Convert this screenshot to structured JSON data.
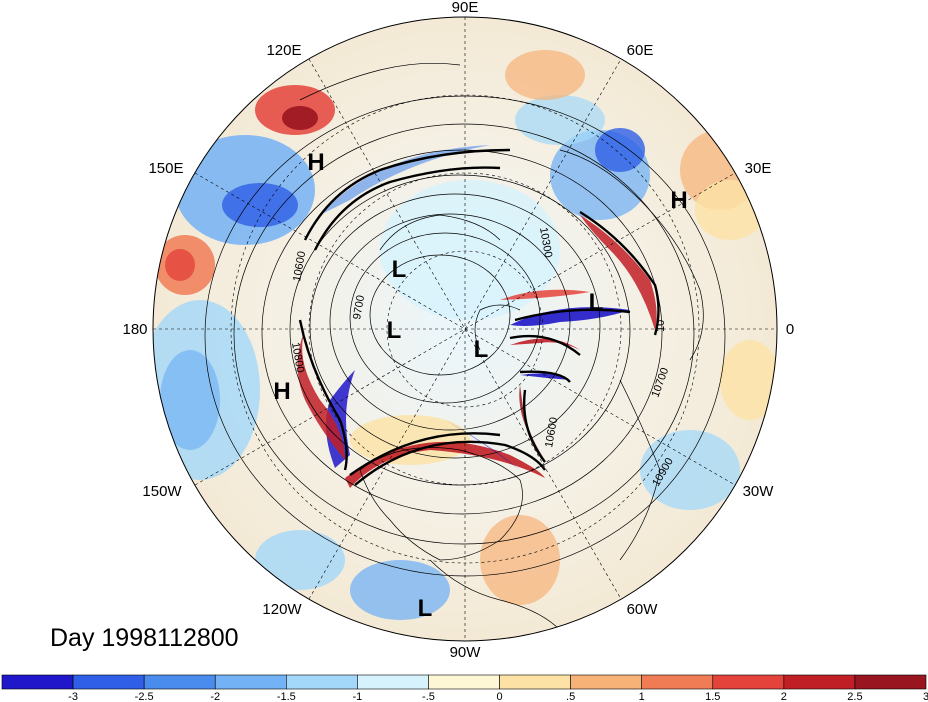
{
  "date_label": "Day 1998112800",
  "longitude_labels": {
    "lon_90e": "90E",
    "lon_60e": "60E",
    "lon_30e": "30E",
    "lon_0": "0",
    "lon_30w": "30W",
    "lon_60w": "60W",
    "lon_90w": "90W",
    "lon_120w": "120W",
    "lon_150w": "150W",
    "lon_180": "180",
    "lon_150e": "150E",
    "lon_120e": "120E"
  },
  "pressure_centers": {
    "h_pacific_north": "H",
    "h_eurasia_east": "H",
    "h_pacific_south": "H",
    "l_siberia": "L",
    "l_arctic_1": "L",
    "l_arctic_2": "L",
    "l_europe": "L",
    "l_south_america": "L"
  },
  "contour_labels": {
    "c10600_a": "10600",
    "c10600_b": "10600",
    "c10800": "10800",
    "c9700": "9700",
    "c10300": "10300",
    "c10900": "10900",
    "c10700": "10700",
    "c10_east": "10"
  },
  "colorbar": {
    "ticks": [
      "-3",
      "-2.5",
      "-2",
      "-1.5",
      "-1",
      "-.5",
      "0",
      ".5",
      "1",
      "1.5",
      "2",
      "2.5",
      "3"
    ],
    "colors": [
      "#1f17c9",
      "#2f5fe6",
      "#4a8cee",
      "#73b2f4",
      "#a3d8fa",
      "#d6f3fd",
      "#fdf7d6",
      "#fce2a5",
      "#f7b278",
      "#f07c56",
      "#e4433b",
      "#c01f26",
      "#991520"
    ]
  }
}
